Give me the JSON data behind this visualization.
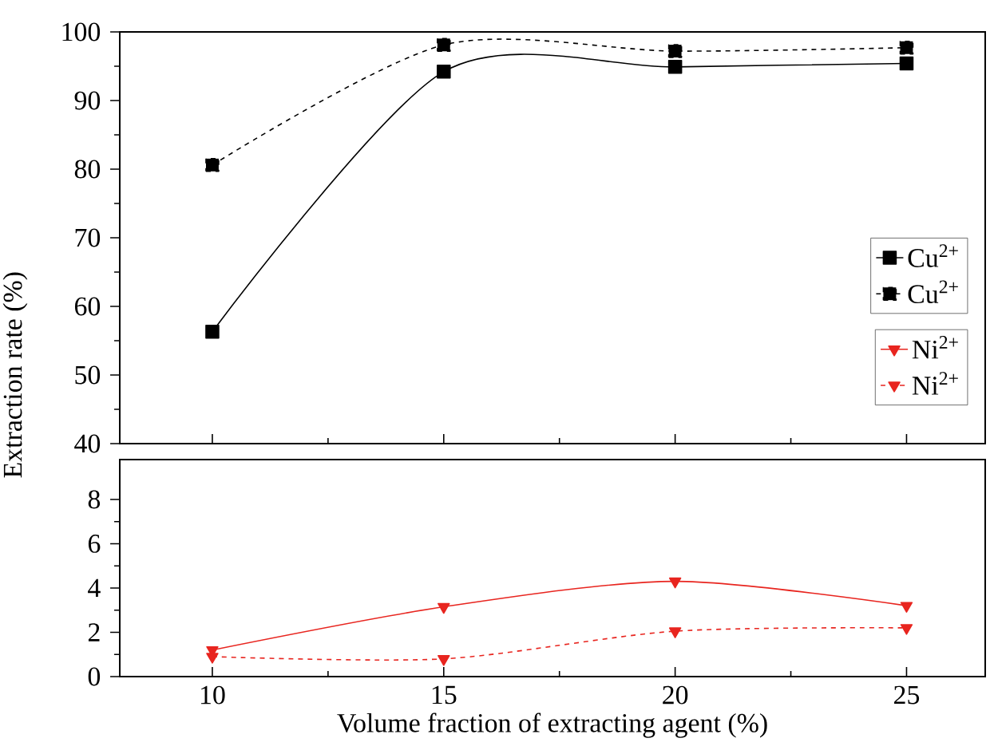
{
  "chart_data": [
    {
      "type": "line",
      "ylabel": "Extraction rate  (%)",
      "x": [
        10,
        15,
        20,
        25
      ],
      "xlim": [
        8,
        26.7
      ],
      "xticks": [
        10,
        15,
        20,
        25
      ],
      "ylim": [
        40,
        100
      ],
      "yticks": [
        40,
        50,
        60,
        70,
        80,
        90,
        100
      ],
      "tick_labels": "y",
      "legend": "right",
      "series": [
        {
          "name": "Cu$^{2+}$",
          "color": "#000000",
          "marker": "square",
          "line_style": "solid",
          "values": [
            56.3,
            94.2,
            94.9,
            95.4
          ]
        },
        {
          "name": "Cu$^{2+}$",
          "color": "#000000",
          "marker": "square",
          "line_style": "dashed",
          "values": [
            80.6,
            98.1,
            97.2,
            97.7
          ]
        }
      ]
    },
    {
      "type": "line",
      "xlabel": "Volume fraction of extracting agent (%)",
      "x": [
        10,
        15,
        20,
        25
      ],
      "xlim": [
        8,
        26.7
      ],
      "xticks": [
        10,
        15,
        20,
        25
      ],
      "ylim": [
        0,
        9.8
      ],
      "yticks": [
        0,
        2,
        4,
        6,
        8
      ],
      "legend": "top right",
      "series": [
        {
          "name": "Ni$^{2+}$",
          "color": "#e8251f",
          "marker": "triangle",
          "line_style": "solid",
          "values": [
            1.2,
            3.15,
            4.3,
            3.2
          ]
        },
        {
          "name": "Ni$^{2+}$",
          "color": "#e8251f",
          "marker": "triangle",
          "line_style": "dashed",
          "values": [
            0.9,
            0.8,
            2.05,
            2.2
          ]
        }
      ]
    }
  ]
}
